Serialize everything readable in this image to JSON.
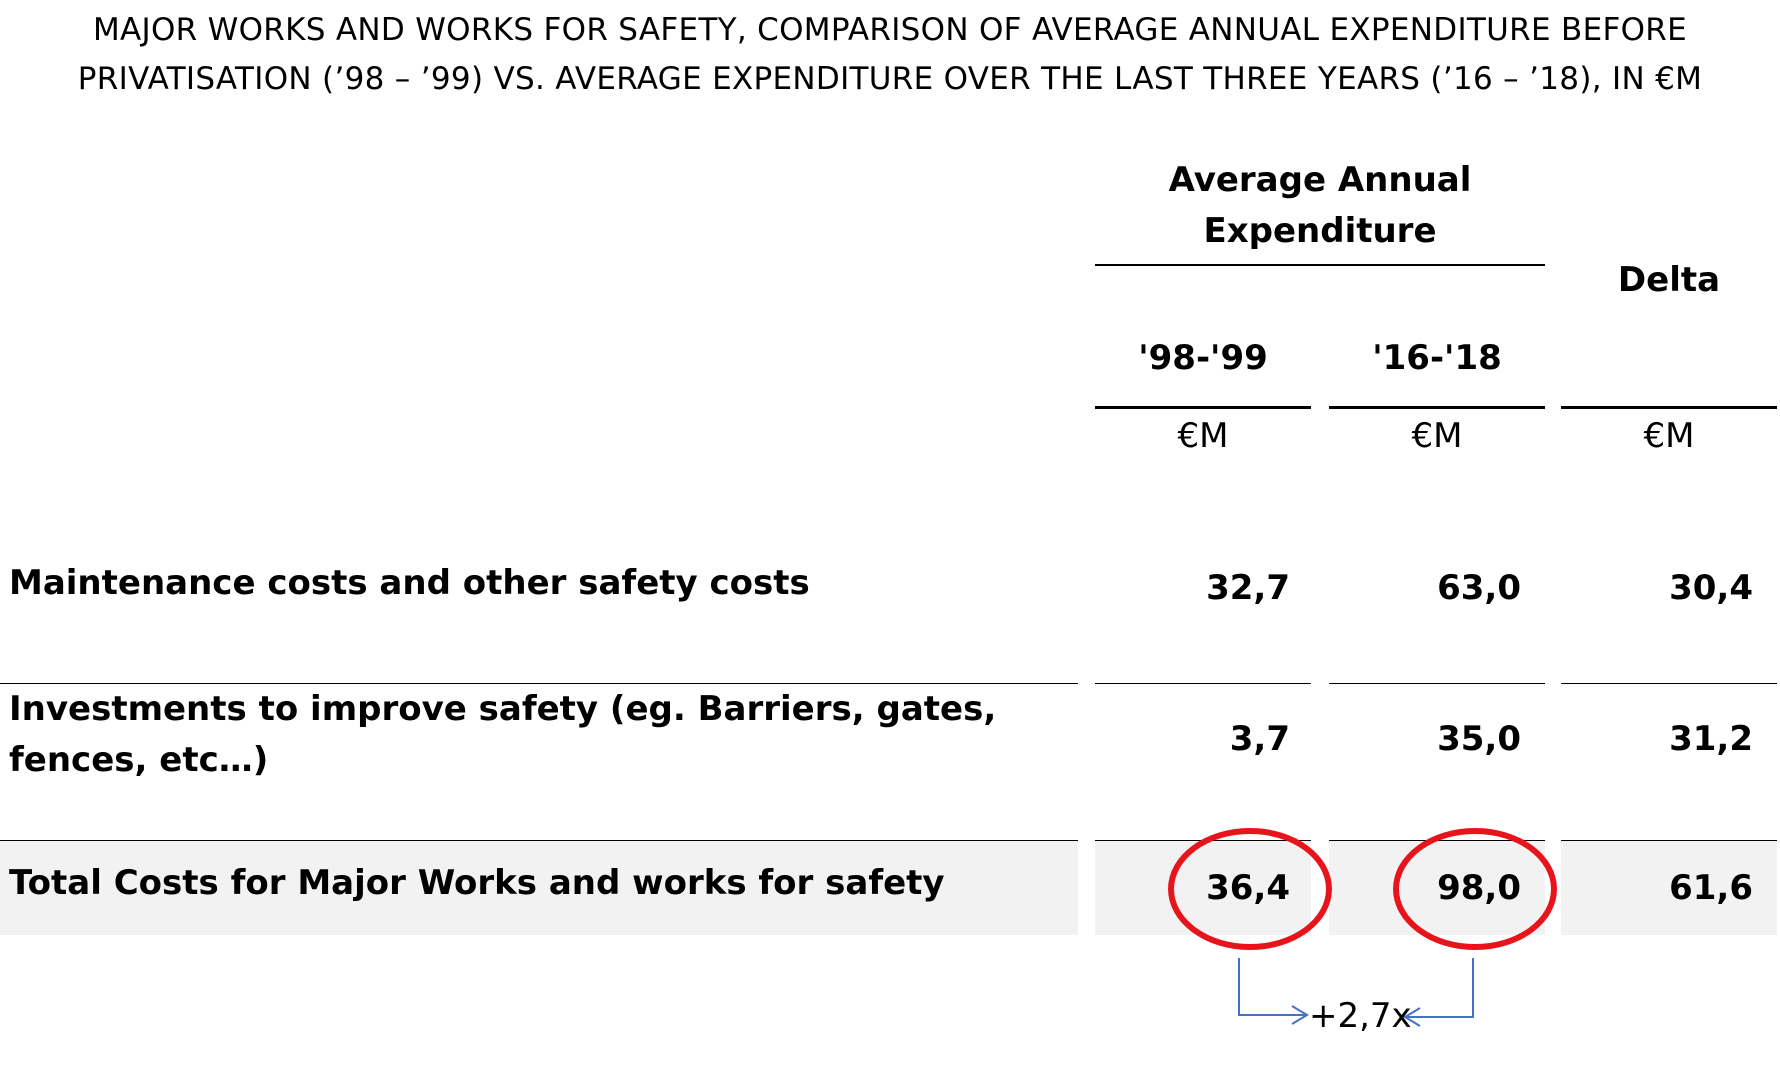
{
  "title": {
    "line1": "MAJOR WORKS AND WORKS FOR SAFETY, COMPARISON OF AVERAGE ANNUAL EXPENDITURE BEFORE",
    "line2": "PRIVATISATION (’98 – ’99) VS. AVERAGE EXPENDITURE OVER THE LAST THREE YEARS (’16 – ’18), IN €M"
  },
  "header": {
    "group_line1": "Average Annual",
    "group_line2": "Expenditure",
    "delta": "Delta",
    "col1": "'98-'99",
    "col2": "'16-'18",
    "unit": "€M"
  },
  "rows": [
    {
      "label": "Maintenance costs and other safety costs",
      "v1": "32,7",
      "v2": "63,0",
      "delta": "30,4"
    },
    {
      "label_line1": "Investments to improve safety (eg. Barriers, gates,",
      "label_line2": "fences, etc…)",
      "v1": "3,7",
      "v2": "35,0",
      "delta": "31,2"
    },
    {
      "label": "Total Costs for Major Works and works for safety",
      "v1": "36,4",
      "v2": "98,0",
      "delta": "61,6"
    }
  ],
  "annotation": {
    "multiplier": "+2,7x"
  },
  "colors": {
    "highlight_circle": "#e8141c",
    "arrow": "#4472c4",
    "total_row_shade": "#f2f2f2"
  }
}
